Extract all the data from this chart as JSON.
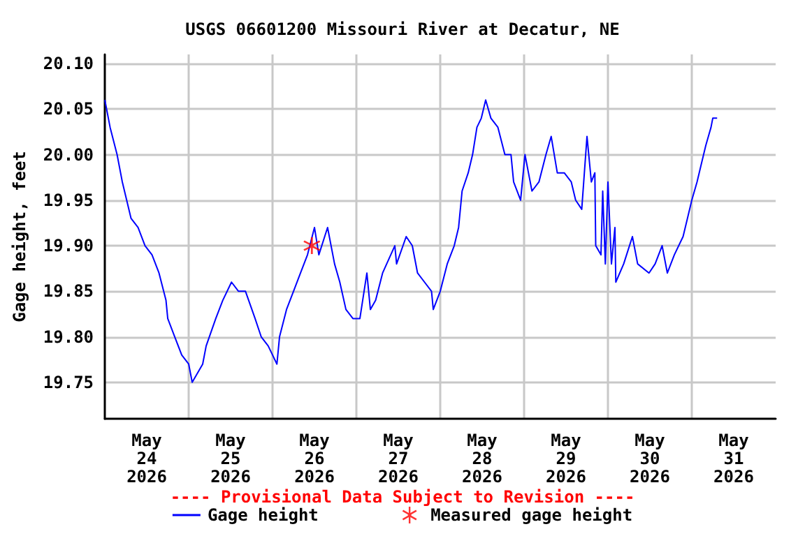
{
  "chart_data": {
    "type": "line",
    "title": "USGS 06601200 Missouri River at Decatur, NE",
    "ylabel": "Gage height, feet",
    "annotations": [
      "---- Provisional Data Subject to Revision ----"
    ],
    "xlim": [
      "2026-05-24T00:00",
      "2026-06-01T00:00"
    ],
    "xticks": [
      {
        "value": "2026-05-24T12:00",
        "label": "May\n24\n2026"
      },
      {
        "value": "2026-05-25T00:00",
        "label": null
      },
      {
        "value": "2026-05-25T12:00",
        "label": "May\n25\n2026"
      },
      {
        "value": "2026-05-26T00:00",
        "label": null
      },
      {
        "value": "2026-05-26T12:00",
        "label": "May\n26\n2026"
      },
      {
        "value": "2026-05-27T00:00",
        "label": null
      },
      {
        "value": "2026-05-27T12:00",
        "label": "May\n27\n2026"
      },
      {
        "value": "2026-05-28T00:00",
        "label": null
      },
      {
        "value": "2026-05-28T12:00",
        "label": "May\n28\n2026"
      },
      {
        "value": "2026-05-29T00:00",
        "label": null
      },
      {
        "value": "2026-05-29T12:00",
        "label": "May\n29\n2026"
      },
      {
        "value": "2026-05-30T00:00",
        "label": null
      },
      {
        "value": "2026-05-30T12:00",
        "label": "May\n30\n2026"
      },
      {
        "value": "2026-05-31T00:00",
        "label": null
      },
      {
        "value": "2026-05-31T12:00",
        "label": "May\n31\n2026"
      }
    ],
    "ylim": [
      19.71,
      20.11
    ],
    "yticks": [
      {
        "value": 19.75,
        "label": "19.75"
      },
      {
        "value": 19.8,
        "label": "19.80"
      },
      {
        "value": 19.85,
        "label": "19.85"
      },
      {
        "value": 19.9,
        "label": "19.90"
      },
      {
        "value": 19.95,
        "label": "19.95"
      },
      {
        "value": 20,
        "label": "20.00"
      },
      {
        "value": 20.05,
        "label": "20.05"
      },
      {
        "value": 20.1,
        "label": "20.10"
      }
    ],
    "grid": true,
    "legend": "bottom",
    "series": [
      {
        "name": "Gage height",
        "color": "#0000ff",
        "marker": "none",
        "x": [
          "2026-05-24T00:00",
          "2026-05-24T01:30",
          "2026-05-24T03:30",
          "2026-05-24T05:00",
          "2026-05-24T07:30",
          "2026-05-24T09:30",
          "2026-05-24T11:30",
          "2026-05-24T13:30",
          "2026-05-24T15:30",
          "2026-05-24T17:30",
          "2026-05-24T18:00",
          "2026-05-24T20:00",
          "2026-05-24T22:00",
          "2026-05-25T00:00",
          "2026-05-25T01:00",
          "2026-05-25T04:00",
          "2026-05-25T05:00",
          "2026-05-25T07:45",
          "2026-05-25T09:45",
          "2026-05-25T12:15",
          "2026-05-25T14:15",
          "2026-05-25T16:15",
          "2026-05-25T19:00",
          "2026-05-25T20:45",
          "2026-05-25T22:45",
          "2026-05-26T01:15",
          "2026-05-26T02:00",
          "2026-05-26T04:00",
          "2026-05-26T06:00",
          "2026-05-26T08:00",
          "2026-05-26T10:00",
          "2026-05-26T12:00",
          "2026-05-26T13:15",
          "2026-05-26T15:45",
          "2026-05-26T17:45",
          "2026-05-26T19:15",
          "2026-05-26T21:00",
          "2026-05-26T23:00",
          "2026-05-27T01:00",
          "2026-05-27T03:00",
          "2026-05-27T04:00",
          "2026-05-27T05:30",
          "2026-05-27T07:30",
          "2026-05-27T11:00",
          "2026-05-27T11:30",
          "2026-05-27T14:15",
          "2026-05-27T16:00",
          "2026-05-27T17:30",
          "2026-05-27T19:30",
          "2026-05-27T21:30",
          "2026-05-27T22:00",
          "2026-05-28T00:00",
          "2026-05-28T02:00",
          "2026-05-28T04:00",
          "2026-05-28T05:15",
          "2026-05-28T06:15",
          "2026-05-28T08:00",
          "2026-05-28T09:15",
          "2026-05-28T10:30",
          "2026-05-28T11:45",
          "2026-05-28T13:00",
          "2026-05-28T14:30",
          "2026-05-28T16:30",
          "2026-05-28T18:30",
          "2026-05-28T20:15",
          "2026-05-28T21:00",
          "2026-05-28T23:00",
          "2026-05-29T00:15",
          "2026-05-29T02:15",
          "2026-05-29T04:15",
          "2026-05-29T06:15",
          "2026-05-29T07:45",
          "2026-05-29T09:30",
          "2026-05-29T11:30",
          "2026-05-29T13:30",
          "2026-05-29T14:45",
          "2026-05-29T16:30",
          "2026-05-29T18:00",
          "2026-05-29T19:15",
          "2026-05-29T20:15",
          "2026-05-29T20:30",
          "2026-05-29T22:00",
          "2026-05-29T22:30",
          "2026-05-29T23:15",
          "2026-05-30T00:00",
          "2026-05-30T01:00",
          "2026-05-30T02:00",
          "2026-05-30T02:15",
          "2026-05-30T04:30",
          "2026-05-30T07:00",
          "2026-05-30T08:30",
          "2026-05-30T11:45",
          "2026-05-30T13:30",
          "2026-05-30T15:30",
          "2026-05-30T17:00",
          "2026-05-30T19:00",
          "2026-05-30T21:30",
          "2026-05-30T22:45",
          "2026-05-31T00:00",
          "2026-05-31T01:30",
          "2026-05-31T02:45",
          "2026-05-31T04:00",
          "2026-05-31T05:30",
          "2026-05-31T06:00",
          "2026-05-31T07:15"
        ],
        "values": [
          20.06,
          20.03,
          20.0,
          19.97,
          19.93,
          19.92,
          19.9,
          19.89,
          19.87,
          19.84,
          19.82,
          19.8,
          19.78,
          19.77,
          19.75,
          19.77,
          19.79,
          19.82,
          19.84,
          19.86,
          19.85,
          19.85,
          19.82,
          19.8,
          19.79,
          19.77,
          19.8,
          19.83,
          19.85,
          19.87,
          19.89,
          19.92,
          19.89,
          19.92,
          19.88,
          19.86,
          19.83,
          19.82,
          19.82,
          19.87,
          19.83,
          19.84,
          19.87,
          19.9,
          19.88,
          19.91,
          19.9,
          19.87,
          19.86,
          19.85,
          19.83,
          19.85,
          19.88,
          19.9,
          19.92,
          19.96,
          19.98,
          20.0,
          20.03,
          20.04,
          20.06,
          20.04,
          20.03,
          20.0,
          20.0,
          19.97,
          19.95,
          20.0,
          19.96,
          19.97,
          20.0,
          20.02,
          19.98,
          19.98,
          19.97,
          19.95,
          19.94,
          20.02,
          19.97,
          19.98,
          19.9,
          19.89,
          19.96,
          19.88,
          19.97,
          19.88,
          19.92,
          19.86,
          19.88,
          19.91,
          19.88,
          19.87,
          19.88,
          19.9,
          19.87,
          19.89,
          19.91,
          19.93,
          19.95,
          19.97,
          19.99,
          20.01,
          20.03,
          20.04,
          20.04
        ]
      },
      {
        "name": "Measured gage height",
        "type": "scatter",
        "color": "#ff0000",
        "marker": "star",
        "x": [
          "2026-05-26T11:15"
        ],
        "values": [
          19.9
        ]
      }
    ]
  }
}
